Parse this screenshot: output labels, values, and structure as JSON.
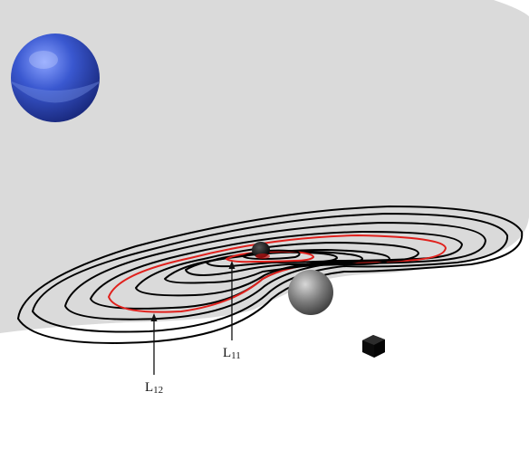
{
  "labels": {
    "l11": {
      "main": "L",
      "sub": "11"
    },
    "l12": {
      "main": "L",
      "sub": "12"
    }
  },
  "colors": {
    "plane": "#dadada",
    "contour": "#000000",
    "highlight": "#e0201c",
    "big_sphere": "#3a58c8",
    "small_sphere": "#808080",
    "cube": "#111111"
  },
  "objects": [
    "blue-sphere",
    "gray-sphere",
    "black-cube",
    "central-body"
  ]
}
